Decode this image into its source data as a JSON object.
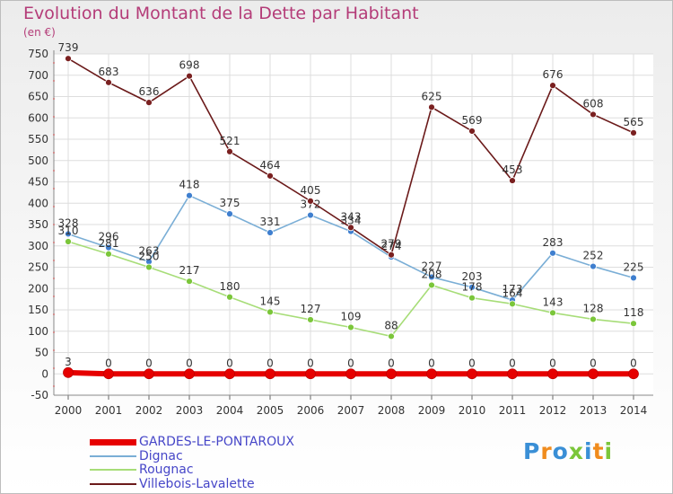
{
  "title": "Evolution du Montant de la Dette par Habitant",
  "subtitle": "(en €)",
  "logo": "Proxiti",
  "colors": {
    "title": "#b43c78",
    "legend_text": "#4646c8",
    "grid": "#dddddd",
    "axis": "#888888"
  },
  "chart_data": {
    "type": "line",
    "x": [
      "2000",
      "2001",
      "2002",
      "2003",
      "2004",
      "2005",
      "2006",
      "2007",
      "2008",
      "2009",
      "2010",
      "2011",
      "2012",
      "2013",
      "2014"
    ],
    "ylim": [
      -50,
      750
    ],
    "yticks": [
      -50,
      0,
      50,
      100,
      150,
      200,
      250,
      300,
      350,
      400,
      450,
      500,
      550,
      600,
      650,
      700,
      750
    ],
    "grid": true,
    "legend_position": "bottom-left",
    "series": [
      {
        "name": "GARDES-LE-PONTAROUX",
        "color": "#e60000",
        "marker_color": "#e60000",
        "values": [
          3,
          0,
          0,
          0,
          0,
          0,
          0,
          0,
          0,
          0,
          0,
          0,
          0,
          0,
          0
        ]
      },
      {
        "name": "Dignac",
        "color": "#7aaed6",
        "marker_color": "#3f7fcf",
        "values": [
          328,
          296,
          263,
          418,
          375,
          331,
          372,
          334,
          274,
          227,
          203,
          173,
          283,
          252,
          225
        ]
      },
      {
        "name": "Rougnac",
        "color": "#a7dd78",
        "marker_color": "#7bc63a",
        "values": [
          310,
          281,
          250,
          217,
          180,
          145,
          127,
          109,
          88,
          208,
          178,
          164,
          143,
          128,
          118
        ]
      },
      {
        "name": "Villebois-Lavalette",
        "color": "#6b1a1a",
        "marker_color": "#7a2020",
        "values": [
          739,
          683,
          636,
          698,
          521,
          464,
          405,
          343,
          279,
          625,
          569,
          453,
          676,
          608,
          565
        ]
      }
    ]
  }
}
